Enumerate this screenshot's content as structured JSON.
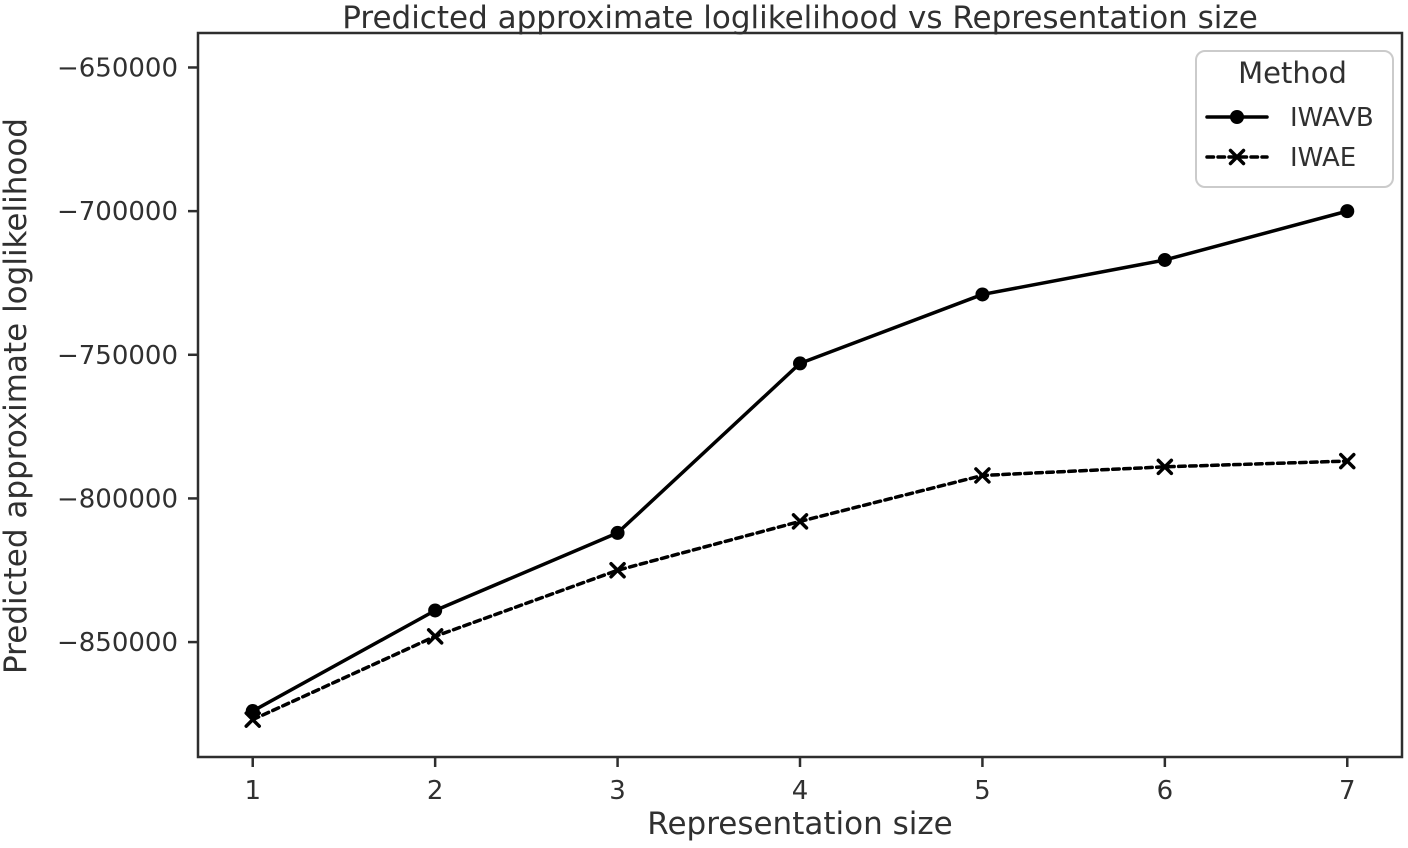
{
  "chart_data": {
    "type": "line",
    "title": "Predicted approximate loglikelihood vs Representation size",
    "xlabel": "Representation size",
    "ylabel": "Predicted approximate loglikelihood",
    "x": [
      1,
      2,
      3,
      4,
      5,
      6,
      7
    ],
    "series": [
      {
        "name": "IWAVB",
        "values": [
          -874000,
          -839000,
          -812000,
          -753000,
          -729000,
          -717000,
          -700000
        ],
        "line_style": "solid",
        "marker": "circle",
        "color": "#000000"
      },
      {
        "name": "IWAE",
        "values": [
          -877000,
          -848000,
          -825000,
          -808000,
          -792000,
          -789000,
          -787000
        ],
        "line_style": "dashed",
        "marker": "x",
        "color": "#000000"
      }
    ],
    "xticks": {
      "values": [
        1,
        2,
        3,
        4,
        5,
        6,
        7
      ],
      "labels": [
        "1",
        "2",
        "3",
        "4",
        "5",
        "6",
        "7"
      ]
    },
    "yticks": {
      "values": [
        -650000,
        -700000,
        -750000,
        -800000,
        -850000
      ],
      "labels": [
        "−650000",
        "−700000",
        "−750000",
        "−800000",
        "−850000"
      ]
    },
    "xlim": [
      0.7,
      7.3
    ],
    "ylim": [
      -890000,
      -638000
    ],
    "grid": false,
    "legend": {
      "title": "Method",
      "position": "upper right",
      "entries": [
        "IWAVB",
        "IWAE"
      ]
    },
    "colors": {
      "background": "#ffffff",
      "line": "#000000",
      "text": "#303030",
      "axis": "#2e2e2e",
      "legend_border": "#cbcbcb"
    }
  }
}
